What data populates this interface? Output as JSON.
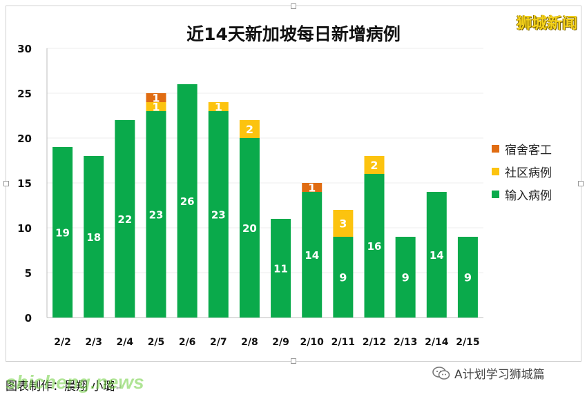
{
  "header": {
    "title": "近14天新加坡每日新增病例",
    "logo_text": "狮城新闻"
  },
  "chart_data": {
    "type": "bar",
    "stacked": true,
    "title": "近14天新加坡每日新增病例",
    "categories": [
      "2/2",
      "2/3",
      "2/4",
      "2/5",
      "2/6",
      "2/7",
      "2/8",
      "2/9",
      "2/10",
      "2/11",
      "2/12",
      "2/13",
      "2/14",
      "2/15"
    ],
    "series": [
      {
        "name": "输入病例",
        "color": "#0aaa4b",
        "values": [
          19,
          18,
          22,
          23,
          26,
          23,
          20,
          11,
          14,
          9,
          16,
          9,
          14,
          9
        ]
      },
      {
        "name": "社区病例",
        "color": "#fcc30f",
        "values": [
          0,
          0,
          0,
          1,
          0,
          1,
          2,
          0,
          0,
          3,
          2,
          0,
          0,
          0
        ]
      },
      {
        "name": "宿舍客工",
        "color": "#e06c12",
        "values": [
          0,
          0,
          0,
          1,
          0,
          0,
          0,
          0,
          1,
          0,
          0,
          0,
          0,
          0
        ]
      }
    ],
    "ylim": [
      0,
      30
    ],
    "yticks": [
      0,
      5,
      10,
      15,
      20,
      25,
      30
    ],
    "grid": true,
    "legend_position": "right"
  },
  "legend": {
    "items": [
      {
        "label": "宿舍客工",
        "color": "#e06c12"
      },
      {
        "label": "社区病例",
        "color": "#fcc30f"
      },
      {
        "label": "输入病例",
        "color": "#0aaa4b"
      }
    ]
  },
  "footer": {
    "caption": "图表制作：晨翔 小璐",
    "return_mark": "↵",
    "watermark": "shicheng.news",
    "social_account": "A计划学习狮城篇"
  }
}
